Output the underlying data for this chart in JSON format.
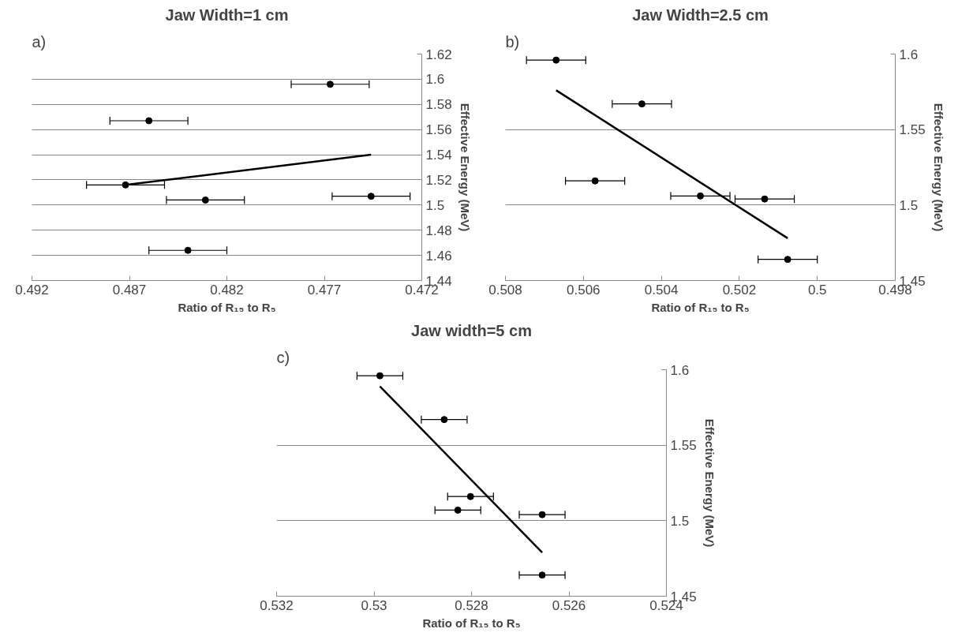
{
  "chart_data": [
    {
      "type": "scatter",
      "title": "Jaw Width=1 cm",
      "xlabel": "Ratio of R₁₅ to R₅",
      "ylabel": "Effective Energy (MeV)",
      "annotations": [
        "a)"
      ],
      "xlim": [
        0.492,
        0.472
      ],
      "xticks": [
        0.492,
        0.487,
        0.482,
        0.477,
        0.472
      ],
      "ylim": [
        1.44,
        1.62
      ],
      "yticks": [
        1.44,
        1.46,
        1.48,
        1.5,
        1.52,
        1.54,
        1.56,
        1.58,
        1.6,
        1.62
      ],
      "grid": "y",
      "series": [
        {
          "marker": "circle",
          "color": "#000000",
          "x": [
            0.4767,
            0.486,
            0.4872,
            0.4831,
            0.4746,
            0.484
          ],
          "values": [
            1.596,
            1.567,
            1.516,
            1.504,
            1.507,
            1.464
          ],
          "xerrors": [
            0.002,
            0.002,
            0.002,
            0.002,
            0.002,
            0.002
          ]
        },
        {
          "type": "line",
          "color": "#000000",
          "x": [
            0.4872,
            0.4746
          ],
          "values": [
            1.516,
            1.54
          ]
        }
      ]
    },
    {
      "type": "scatter",
      "title": "Jaw Width=2.5 cm",
      "xlabel": "Ratio of R₁₅ to R₅",
      "ylabel": "Effective Energy (MeV)",
      "annotations": [
        "b)"
      ],
      "xlim": [
        0.508,
        0.498
      ],
      "xticks": [
        0.508,
        0.506,
        0.504,
        0.502,
        0.5,
        0.498
      ],
      "ylim": [
        1.45,
        1.6
      ],
      "yticks": [
        1.45,
        1.5,
        1.55,
        1.6
      ],
      "grid": "y",
      "series": [
        {
          "marker": "circle",
          "color": "#000000",
          "x": [
            0.5067,
            0.5045,
            0.5057,
            0.503,
            0.50135,
            0.50076
          ],
          "values": [
            1.596,
            1.567,
            1.516,
            1.506,
            1.504,
            1.464
          ],
          "xerrors": [
            0.00076,
            0.00076,
            0.00076,
            0.00076,
            0.00076,
            0.00076
          ]
        },
        {
          "type": "line",
          "color": "#000000",
          "x": [
            0.5067,
            0.50076
          ],
          "values": [
            1.576,
            1.478
          ]
        }
      ]
    },
    {
      "type": "scatter",
      "title": "Jaw width=5 cm",
      "xlabel": "Ratio of R₁₅ to R₅",
      "ylabel": "Effective Energy (MeV)",
      "annotations": [
        "c)"
      ],
      "xlim": [
        0.532,
        0.524
      ],
      "xticks": [
        0.532,
        0.53,
        0.528,
        0.526,
        0.524
      ],
      "ylim": [
        1.45,
        1.6
      ],
      "yticks": [
        1.45,
        1.5,
        1.55,
        1.6
      ],
      "grid": "y",
      "series": [
        {
          "marker": "circle",
          "color": "#000000",
          "x": [
            0.52988,
            0.52856,
            0.52802,
            0.52828,
            0.52655,
            0.52655
          ],
          "values": [
            1.596,
            1.567,
            1.516,
            1.507,
            1.504,
            1.464
          ],
          "xerrors": [
            0.00047,
            0.00047,
            0.00047,
            0.00047,
            0.00047,
            0.00047
          ]
        },
        {
          "type": "line",
          "color": "#000000",
          "x": [
            0.52988,
            0.52655
          ],
          "values": [
            1.589,
            1.479
          ]
        }
      ]
    }
  ]
}
